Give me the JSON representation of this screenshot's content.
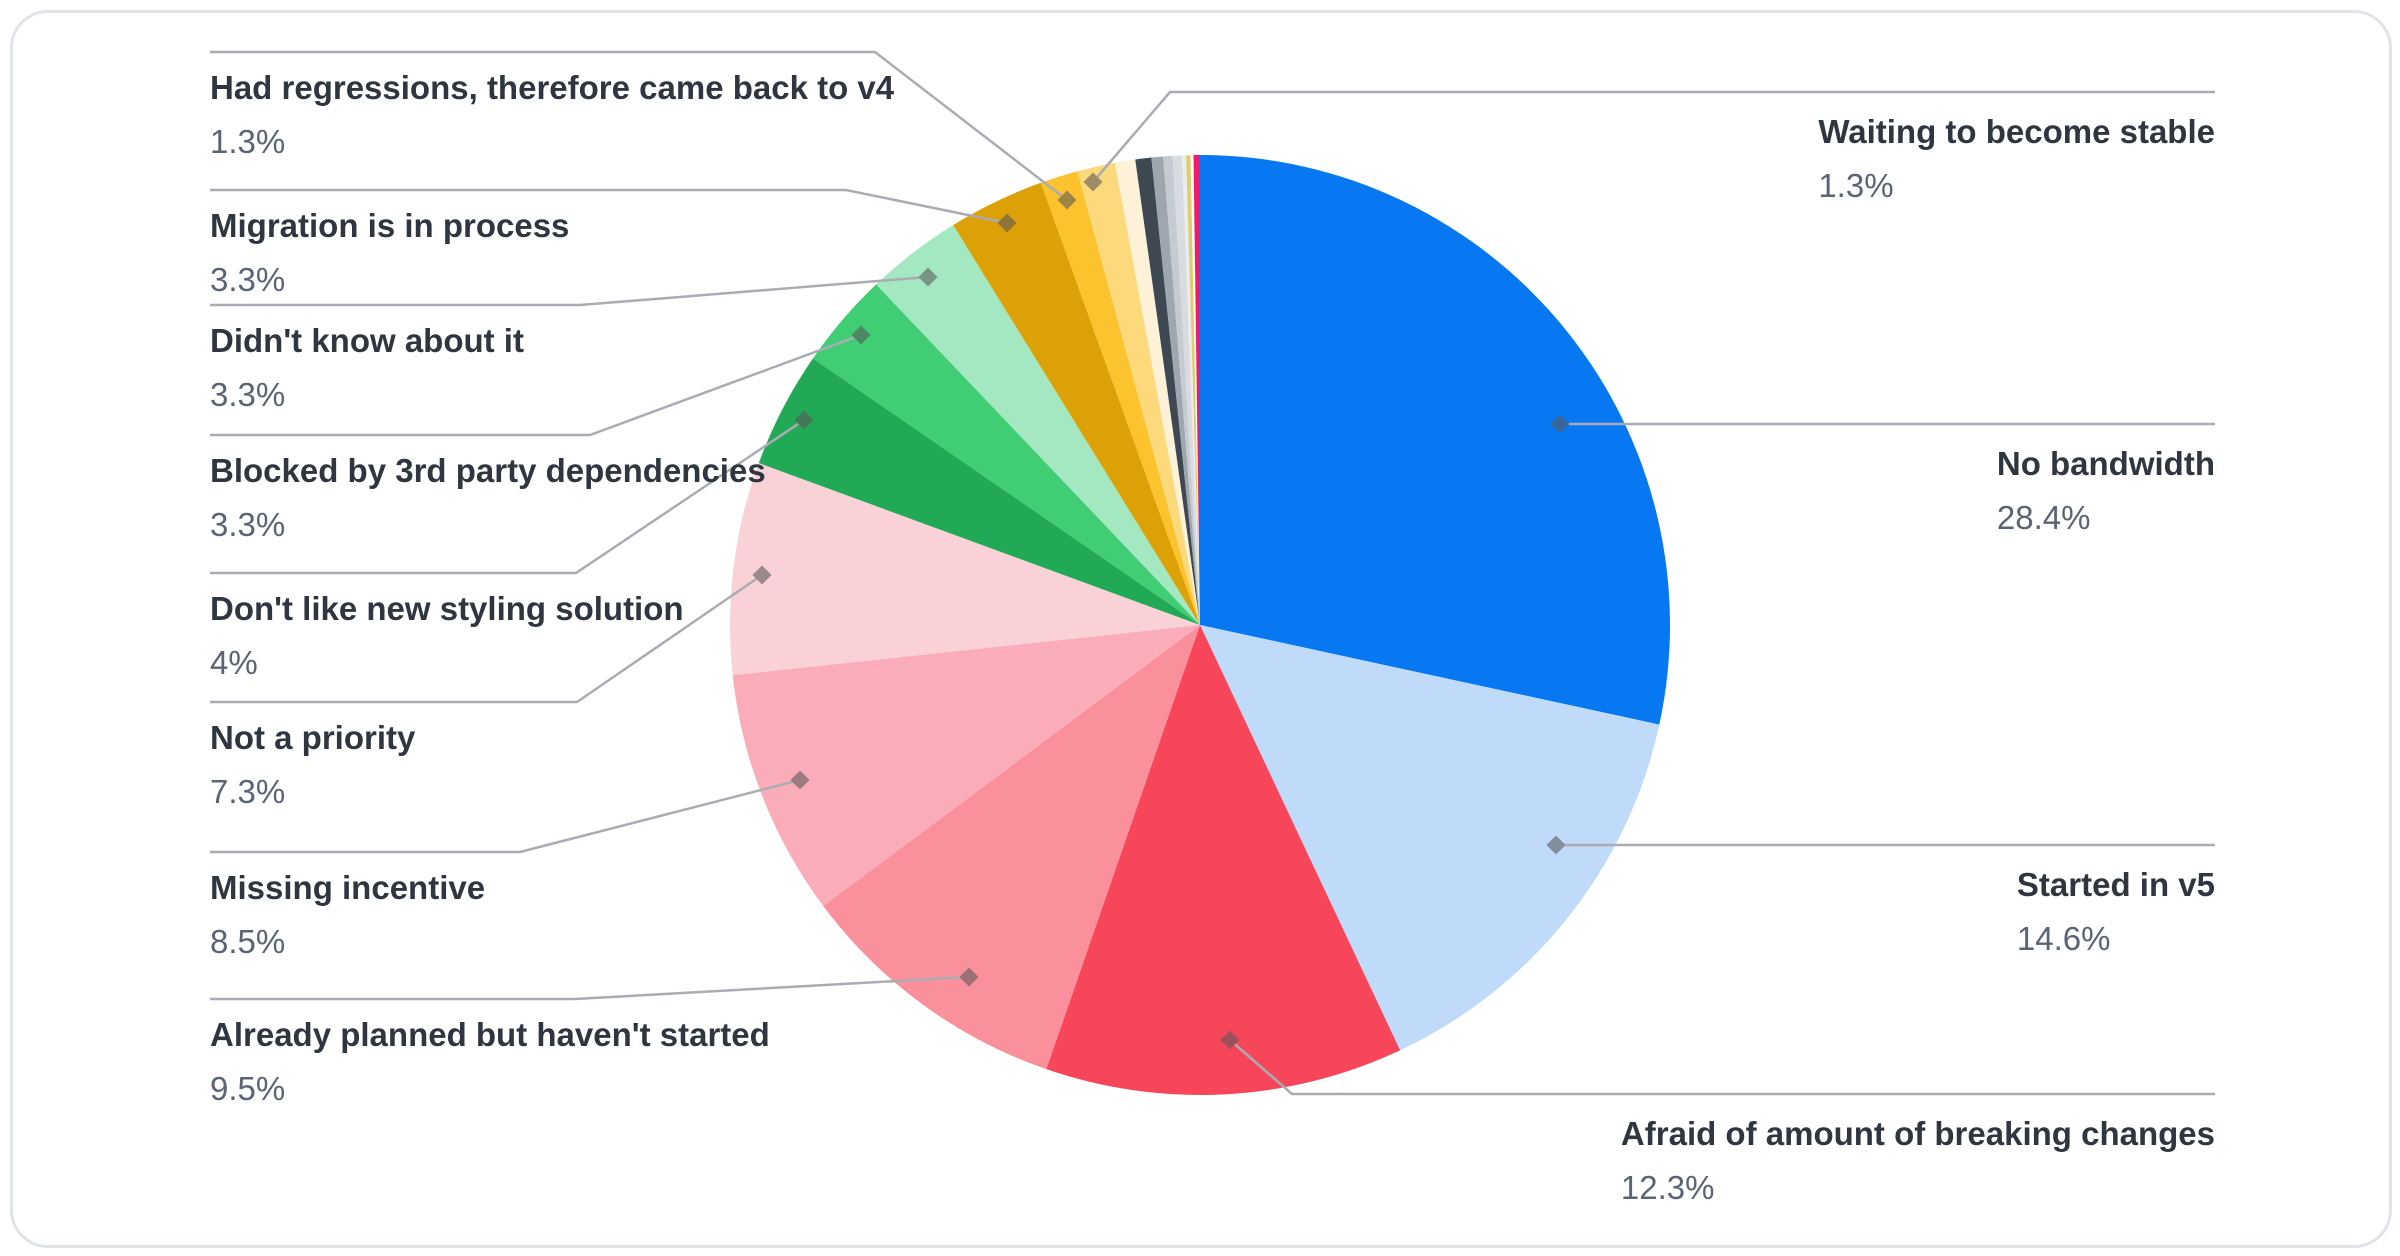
{
  "chart_data": {
    "type": "pie",
    "title": "",
    "unit": "percent",
    "start_angle_deg": 0,
    "direction": "clockwise",
    "legend_position": "callout-labels",
    "slices": [
      {
        "label": "No bandwidth",
        "value": 28.4,
        "pct_label": "28.4%",
        "color": "#0778F2"
      },
      {
        "label": "Started in v5",
        "value": 14.6,
        "pct_label": "14.6%",
        "color": "#BFDBF9"
      },
      {
        "label": "Afraid of amount of breaking changes",
        "value": 12.3,
        "pct_label": "12.3%",
        "color": "#F74659"
      },
      {
        "label": "Already planned but haven't started",
        "value": 9.5,
        "pct_label": "9.5%",
        "color": "#F9909B"
      },
      {
        "label": "Missing incentive",
        "value": 8.5,
        "pct_label": "8.5%",
        "color": "#FAACB8"
      },
      {
        "label": "Not a priority",
        "value": 7.3,
        "pct_label": "7.3%",
        "color": "#FBD1D8"
      },
      {
        "label": "Don't like new styling solution",
        "value": 4,
        "pct_label": "4%",
        "color": "#22A956"
      },
      {
        "label": "Blocked by 3rd party dependencies",
        "value": 3.3,
        "pct_label": "3.3%",
        "color": "#41CD73"
      },
      {
        "label": "Didn't know about it",
        "value": 3.3,
        "pct_label": "3.3%",
        "color": "#A3E8C1"
      },
      {
        "label": "Migration is in process",
        "value": 3.3,
        "pct_label": "3.3%",
        "color": "#DCA106"
      },
      {
        "label": "Had regressions, therefore came back to v4",
        "value": 1.3,
        "pct_label": "1.3%",
        "color": "#FCC32E"
      },
      {
        "label": "Waiting to become stable",
        "value": 1.3,
        "pct_label": "1.3%",
        "color": "#FCD97B"
      },
      {
        "label": null,
        "value": 0.7,
        "color": "#FDF1D8"
      },
      {
        "label": null,
        "value": 0.55,
        "color": "#3E4853"
      },
      {
        "label": null,
        "value": 0.4,
        "color": "#9EA7B0"
      },
      {
        "label": null,
        "value": 0.32,
        "color": "#C5CBD1"
      },
      {
        "label": null,
        "value": 0.32,
        "color": "#D8DCE0"
      },
      {
        "label": null,
        "value": 0.14,
        "color": "#EAECEF"
      },
      {
        "label": null,
        "value": 0.15,
        "color": "#E0CE6C"
      },
      {
        "label": null,
        "value": 0.1,
        "color": "#FAFAF8"
      },
      {
        "label": null,
        "value": 0.22,
        "color": "#F3196A"
      }
    ]
  }
}
